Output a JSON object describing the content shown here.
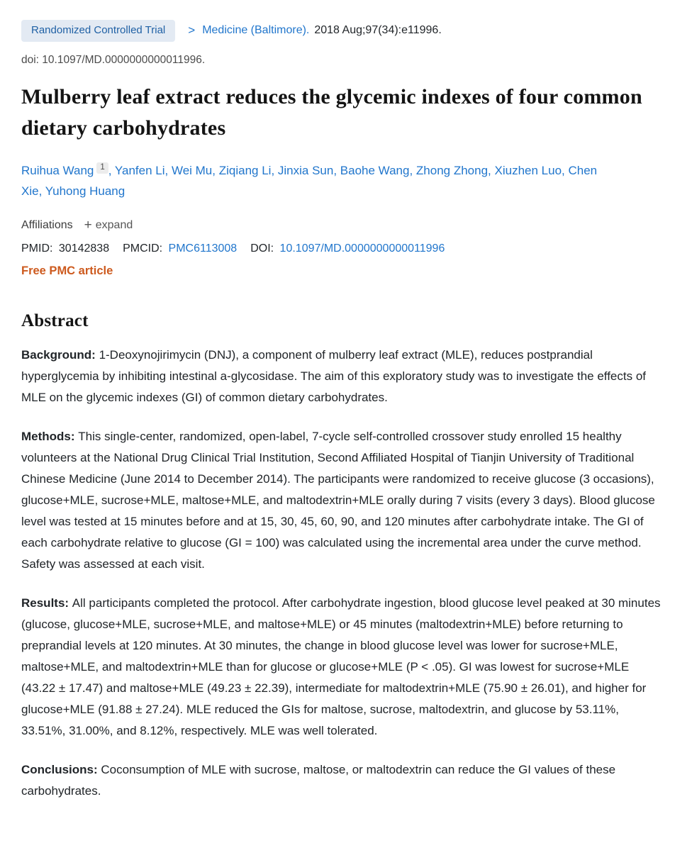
{
  "header": {
    "publication_type": "Randomized Controlled Trial",
    "chevron": ">",
    "journal": "Medicine (Baltimore).",
    "citation": "2018 Aug;97(34):e11996.",
    "doi_line": "doi: 10.1097/MD.0000000000011996."
  },
  "title": "Mulberry leaf extract reduces the glycemic indexes of four common dietary carbohydrates",
  "authors": [
    {
      "name": "Ruihua Wang",
      "sup": "1"
    },
    {
      "name": "Yanfen Li"
    },
    {
      "name": "Wei Mu"
    },
    {
      "name": "Ziqiang Li"
    },
    {
      "name": "Jinxia Sun"
    },
    {
      "name": "Baohe Wang"
    },
    {
      "name": "Zhong Zhong"
    },
    {
      "name": "Xiuzhen Luo"
    },
    {
      "name": "Chen Xie"
    },
    {
      "name": "Yuhong Huang"
    }
  ],
  "author_separator": ", ",
  "affiliations": {
    "label": "Affiliations",
    "plus": "+",
    "expand_label": "expand"
  },
  "identifiers": {
    "pmid_label": "PMID:",
    "pmid": "30142838",
    "pmcid_label": "PMCID:",
    "pmcid": "PMC6113008",
    "doi_label": "DOI:",
    "doi": "10.1097/MD.0000000000011996"
  },
  "free_pmc_label": "Free PMC article",
  "abstract": {
    "heading": "Abstract",
    "sections": [
      {
        "label": "Background:",
        "text": "1-Deoxynojirimycin (DNJ), a component of mulberry leaf extract (MLE), reduces postprandial hyperglycemia by inhibiting intestinal a-glycosidase. The aim of this exploratory study was to investigate the effects of MLE on the glycemic indexes (GI) of common dietary carbohydrates."
      },
      {
        "label": "Methods:",
        "text": "This single-center, randomized, open-label, 7-cycle self-controlled crossover study enrolled 15 healthy volunteers at the National Drug Clinical Trial Institution, Second Affiliated Hospital of Tianjin University of Traditional Chinese Medicine (June 2014 to December 2014). The participants were randomized to receive glucose (3 occasions), glucose+MLE, sucrose+MLE, maltose+MLE, and maltodextrin+MLE orally during 7 visits (every 3 days). Blood glucose level was tested at 15 minutes before and at 15, 30, 45, 60, 90, and 120 minutes after carbohydrate intake. The GI of each carbohydrate relative to glucose (GI = 100) was calculated using the incremental area under the curve method. Safety was assessed at each visit."
      },
      {
        "label": "Results:",
        "text": "All participants completed the protocol. After carbohydrate ingestion, blood glucose level peaked at 30 minutes (glucose, glucose+MLE, sucrose+MLE, and maltose+MLE) or 45 minutes (maltodextrin+MLE) before returning to preprandial levels at 120 minutes. At 30 minutes, the change in blood glucose level was lower for sucrose+MLE, maltose+MLE, and maltodextrin+MLE than for glucose or glucose+MLE (P < .05). GI was lowest for sucrose+MLE (43.22 ± 17.47) and maltose+MLE (49.23 ± 22.39), intermediate for maltodextrin+MLE (75.90 ± 26.01), and higher for glucose+MLE (91.88 ± 27.24). MLE reduced the GIs for maltose, sucrose, maltodextrin, and glucose by 53.11%, 33.51%, 31.00%, and 8.12%, respectively. MLE was well tolerated."
      },
      {
        "label": "Conclusions:",
        "text": "Coconsumption of MLE with sucrose, maltose, or maltodextrin can reduce the GI values of these carbohydrates."
      }
    ]
  },
  "colors": {
    "link_blue": "#2176cc",
    "badge_bg": "#e3eaf3",
    "badge_text": "#2061a5",
    "free_pmc_orange": "#cd5a1e",
    "body_text": "#212529"
  }
}
